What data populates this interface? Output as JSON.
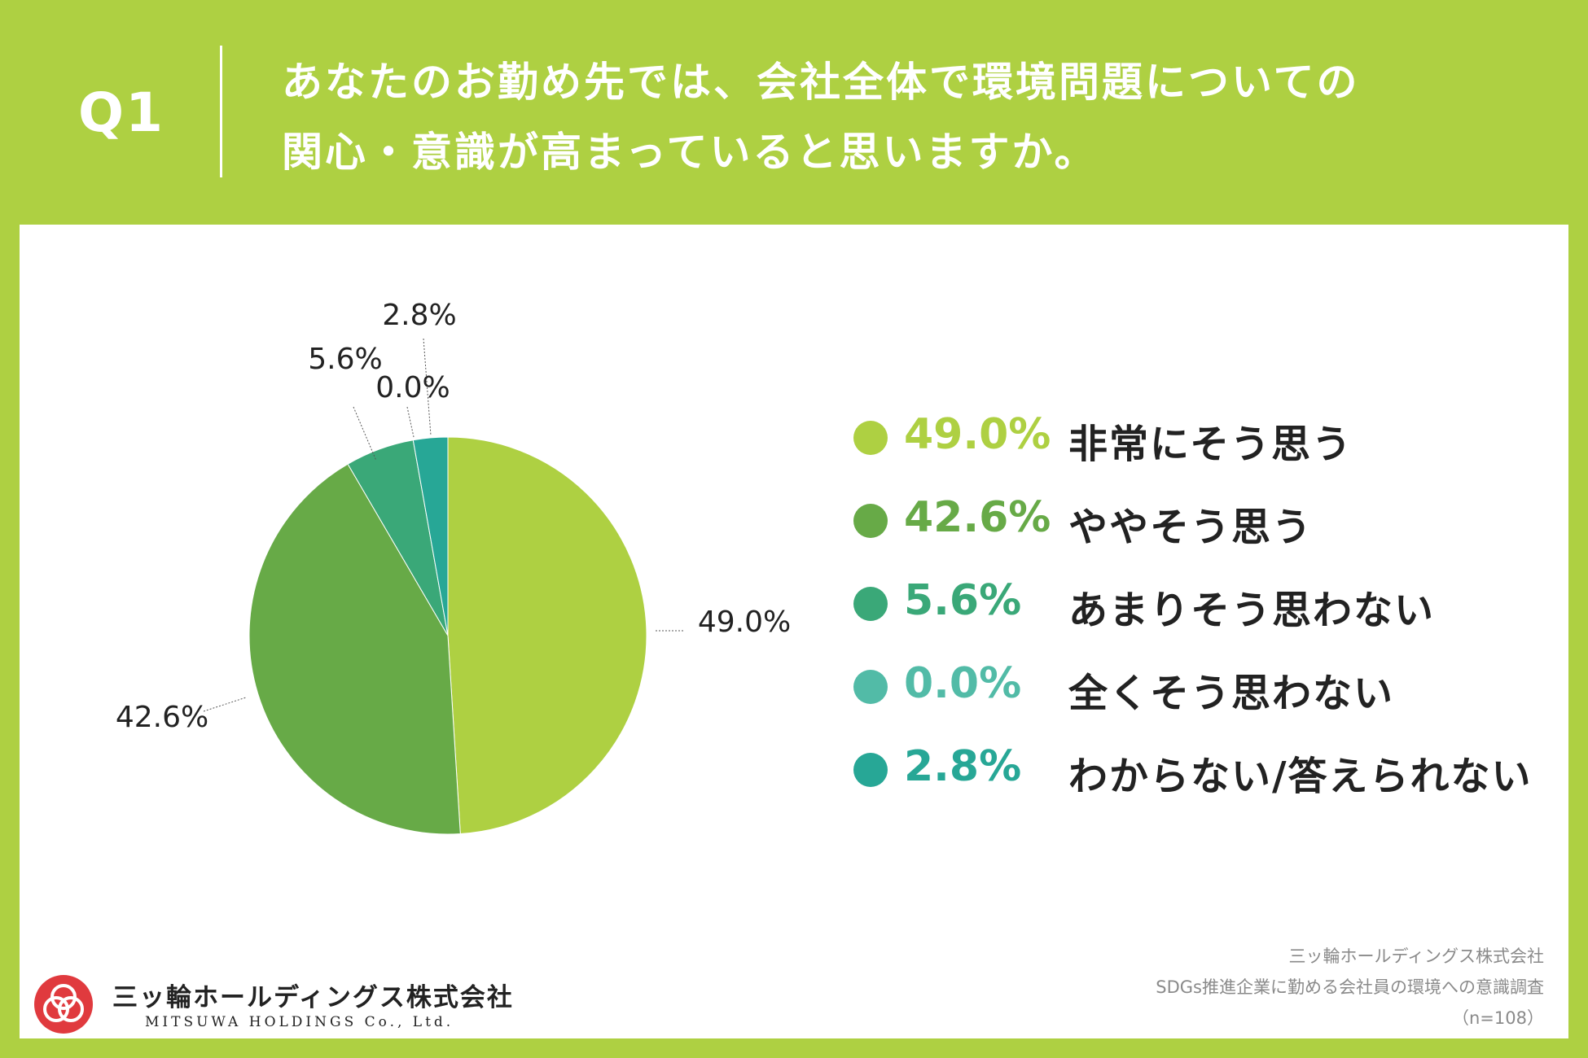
{
  "question": {
    "number": "Q1",
    "line1": "あなたのお勤め先では、会社全体で環境問題についての",
    "line2": "関心・意識が高まっていると思いますか。"
  },
  "colors": {
    "background": "#aed042",
    "panel": "#ffffff",
    "leader_line": "#555555"
  },
  "chart_data": {
    "type": "pie",
    "title": "あなたのお勤め先では、会社全体で環境問題についての関心・意識が高まっていると思いますか。",
    "sample_size": "n=108",
    "slices": [
      {
        "label": "非常にそう思う",
        "value": 49.0,
        "display": "49.0%",
        "color": "#aed042"
      },
      {
        "label": "ややそう思う",
        "value": 42.6,
        "display": "42.6%",
        "color": "#67aa47"
      },
      {
        "label": "あまりそう思わない",
        "value": 5.6,
        "display": "5.6%",
        "color": "#3aa878"
      },
      {
        "label": "全くそう思わない",
        "value": 0.0,
        "display": "0.0%",
        "color": "#52bba7"
      },
      {
        "label": "わからない/答えられない",
        "value": 2.8,
        "display": "2.8%",
        "color": "#27a796"
      }
    ]
  },
  "logo": {
    "name_jp": "三ッ輪ホールディングス株式会社",
    "name_en": "MITSUWA HOLDINGS Co., Ltd."
  },
  "source": {
    "company": "三ッ輪ホールディングス株式会社",
    "survey": "SDGs推進企業に勤める会社員の環境への意識調査",
    "sample": "（n=108）"
  }
}
